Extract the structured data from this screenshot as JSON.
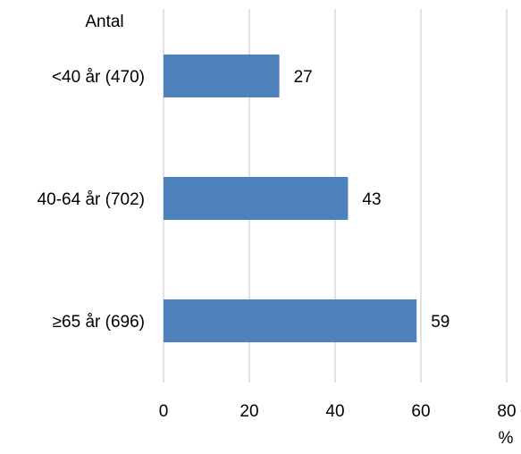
{
  "chart_data": {
    "type": "bar",
    "orientation": "horizontal",
    "title": "",
    "category_axis_header": "Antal",
    "xlabel": "%",
    "ylabel": "",
    "categories": [
      "<40 år (470)",
      "40-64 år (702)",
      "≥65 år (696)"
    ],
    "values": [
      27,
      43,
      59
    ],
    "data_labels": [
      "27",
      "43",
      "59"
    ],
    "xlim": [
      0,
      80
    ],
    "x_ticks": [
      0,
      20,
      40,
      60,
      80
    ],
    "x_tick_labels": [
      "0",
      "20",
      "40",
      "60",
      "80"
    ],
    "grid": "vertical",
    "legend": "none",
    "colors": {
      "bar": "#4f81bd",
      "grid": "#d9d9d9",
      "text": "#000000"
    }
  }
}
